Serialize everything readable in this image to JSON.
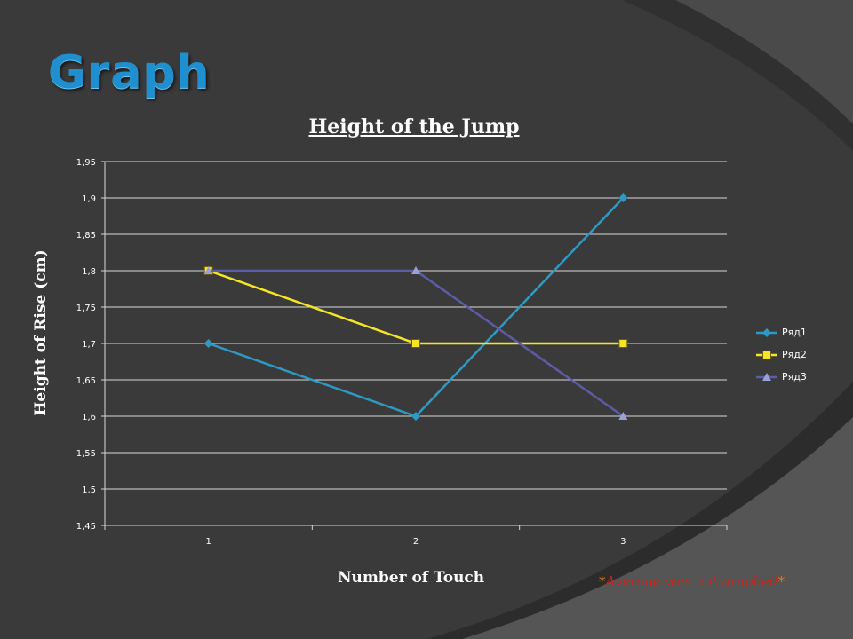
{
  "slide": {
    "title": "Graph",
    "note": "Average was not graphed",
    "note_star": "*"
  },
  "chart_data": {
    "type": "line",
    "title": "Height of the Jump",
    "xlabel": "Number of Touch",
    "ylabel": "Height of Rise (cm)",
    "categories": [
      "1",
      "2",
      "3"
    ],
    "ylim": [
      1.45,
      1.95
    ],
    "yticks": [
      "1,45",
      "1,5",
      "1,55",
      "1,6",
      "1,65",
      "1,7",
      "1,75",
      "1,8",
      "1,85",
      "1,9",
      "1,95"
    ],
    "grid": true,
    "legend_position": "right",
    "series": [
      {
        "name": "Ряд1",
        "values": [
          1.7,
          1.6,
          1.9
        ],
        "color": "#2e9ac4",
        "marker": "diamond"
      },
      {
        "name": "Ряд2",
        "values": [
          1.8,
          1.7,
          1.7
        ],
        "color": "#f5e625",
        "marker": "square"
      },
      {
        "name": "Ряд3",
        "values": [
          1.8,
          1.8,
          1.6
        ],
        "color": "#5c5ca8",
        "marker": "triangle"
      }
    ]
  }
}
